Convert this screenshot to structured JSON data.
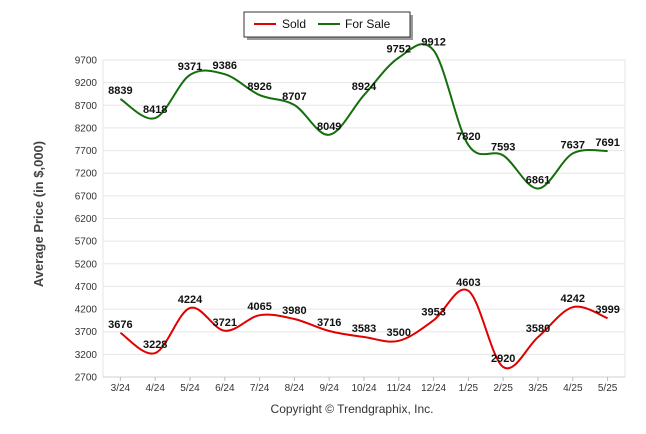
{
  "chart_data": {
    "type": "line",
    "categories": [
      "3/24",
      "4/24",
      "5/24",
      "6/24",
      "7/24",
      "8/24",
      "9/24",
      "10/24",
      "11/24",
      "12/24",
      "1/25",
      "2/25",
      "3/25",
      "4/25",
      "5/25"
    ],
    "series": [
      {
        "name": "Sold",
        "color": "#e00000",
        "values": [
          3676,
          3228,
          4224,
          3721,
          4065,
          3980,
          3716,
          3583,
          3500,
          3953,
          4603,
          2920,
          3580,
          4242,
          3999
        ]
      },
      {
        "name": "For Sale",
        "color": "#156e0c",
        "values": [
          8839,
          8418,
          9371,
          9386,
          8926,
          8707,
          8049,
          8924,
          9752,
          9912,
          7820,
          7593,
          6861,
          7637,
          7691
        ]
      }
    ],
    "ylabel": "Average Price (in $,000)",
    "ylim": [
      2700,
      9700
    ],
    "yticks": [
      2700,
      3200,
      3700,
      4200,
      4700,
      5200,
      5700,
      6200,
      6700,
      7200,
      7700,
      8200,
      8700,
      9200,
      9700
    ],
    "grid": true,
    "legend_position": "top-center"
  },
  "footer": {
    "copyright": "Copyright © Trendgraphix, Inc."
  }
}
